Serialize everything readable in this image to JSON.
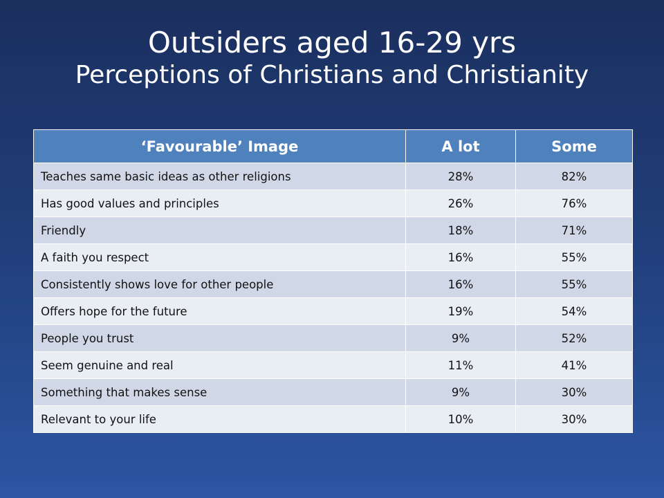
{
  "title": {
    "line1": "Outsiders aged 16-29 yrs",
    "line2": "Perceptions of Christians and Christianity"
  },
  "table": {
    "headers": [
      "‘Favourable’ Image",
      "A lot",
      "Some"
    ],
    "rows": [
      {
        "label": "Teaches same basic ideas as other religions",
        "a_lot": "28%",
        "some": "82%"
      },
      {
        "label": "Has good values and principles",
        "a_lot": "26%",
        "some": "76%"
      },
      {
        "label": "Friendly",
        "a_lot": "18%",
        "some": "71%"
      },
      {
        "label": "A faith you respect",
        "a_lot": "16%",
        "some": "55%"
      },
      {
        "label": "Consistently shows love for other people",
        "a_lot": "16%",
        "some": "55%"
      },
      {
        "label": "Offers hope for the future",
        "a_lot": "19%",
        "some": "54%"
      },
      {
        "label": "People you trust",
        "a_lot": "9%",
        "some": "52%"
      },
      {
        "label": "Seem genuine and real",
        "a_lot": "11%",
        "some": "41%"
      },
      {
        "label": "Something that makes sense",
        "a_lot": "9%",
        "some": "30%"
      },
      {
        "label": "Relevant to your life",
        "a_lot": "10%",
        "some": "30%"
      }
    ]
  },
  "colors": {
    "background_top": "#1b2f5e",
    "background_bottom": "#2c56a3",
    "header_fill": "#4f81bd",
    "row_band_dark": "#d0d8e8",
    "row_band_light": "#e9edf4"
  }
}
